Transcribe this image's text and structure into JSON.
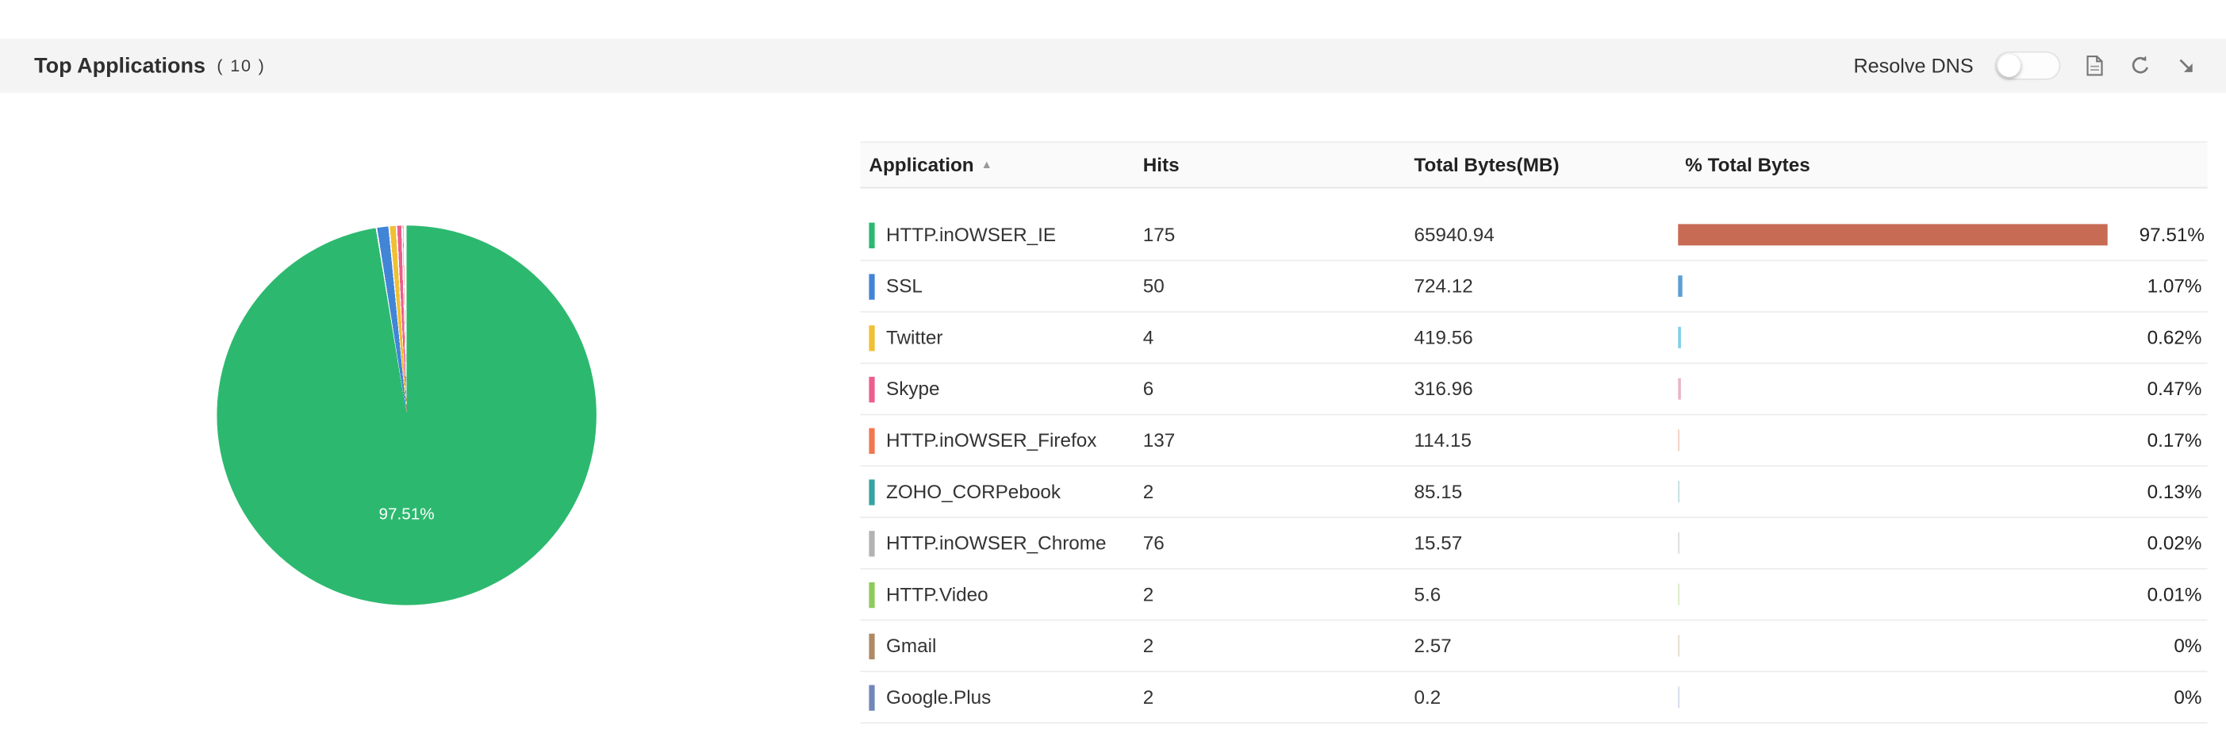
{
  "header": {
    "title": "Top Applications",
    "count": "( 10 )",
    "resolve_dns_label": "Resolve DNS",
    "resolve_dns_state": "off"
  },
  "pie": {
    "center_label": "97.51%"
  },
  "table": {
    "columns": {
      "application": "Application",
      "hits": "Hits",
      "total_bytes": "Total Bytes(MB)",
      "pct": "% Total Bytes"
    },
    "sort": {
      "column": "Application",
      "direction": "asc"
    },
    "rows": [
      {
        "application": "HTTP.inOWSER_IE",
        "hits": "175",
        "total_bytes": "65940.94",
        "pct": "97.51%",
        "pct_value": 97.51,
        "chip_color": "#2cb96f",
        "bar_color": "#c76b54"
      },
      {
        "application": "SSL",
        "hits": "50",
        "total_bytes": "724.12",
        "pct": "1.07%",
        "pct_value": 1.07,
        "chip_color": "#4285d6",
        "bar_color": "#5b9fd4"
      },
      {
        "application": "Twitter",
        "hits": "4",
        "total_bytes": "419.56",
        "pct": "0.62%",
        "pct_value": 0.62,
        "chip_color": "#f0c034",
        "bar_color": "#7fd0ea"
      },
      {
        "application": "Skype",
        "hits": "6",
        "total_bytes": "316.96",
        "pct": "0.47%",
        "pct_value": 0.47,
        "chip_color": "#ea5f8e",
        "bar_color": "#e9b7c9"
      },
      {
        "application": "HTTP.inOWSER_Firefox",
        "hits": "137",
        "total_bytes": "114.15",
        "pct": "0.17%",
        "pct_value": 0.17,
        "chip_color": "#f0774f",
        "bar_color": "#f3cdbf"
      },
      {
        "application": "ZOHO_CORPebook",
        "hits": "2",
        "total_bytes": "85.15",
        "pct": "0.13%",
        "pct_value": 0.13,
        "chip_color": "#35a3a3",
        "bar_color": "#bfdfdf"
      },
      {
        "application": "HTTP.inOWSER_Chrome",
        "hits": "76",
        "total_bytes": "15.57",
        "pct": "0.02%",
        "pct_value": 0.02,
        "chip_color": "#b3b3b3",
        "bar_color": "#dcdcdc"
      },
      {
        "application": "HTTP.Video",
        "hits": "2",
        "total_bytes": "5.6",
        "pct": "0.01%",
        "pct_value": 0.01,
        "chip_color": "#8fca5c",
        "bar_color": "#d6ecc0"
      },
      {
        "application": "Gmail",
        "hits": "2",
        "total_bytes": "2.57",
        "pct": "0%",
        "pct_value": 0,
        "chip_color": "#ad8a66",
        "bar_color": "#e4d8ca"
      },
      {
        "application": "Google.Plus",
        "hits": "2",
        "total_bytes": "0.2",
        "pct": "0%",
        "pct_value": 0,
        "chip_color": "#7286b8",
        "bar_color": "#d3daea"
      }
    ]
  },
  "chart_data": {
    "type": "pie",
    "title": "Top Applications ( 10 )",
    "labels": [
      "HTTP.inOWSER_IE",
      "SSL",
      "Twitter",
      "Skype",
      "HTTP.inOWSER_Firefox",
      "ZOHO_CORPebook",
      "HTTP.inOWSER_Chrome",
      "HTTP.Video",
      "Gmail",
      "Google.Plus"
    ],
    "values": [
      97.51,
      1.07,
      0.62,
      0.47,
      0.17,
      0.13,
      0.02,
      0.01,
      0,
      0
    ],
    "value_unit": "% Total Bytes",
    "colors": [
      "#2cb96f",
      "#4285d6",
      "#f0c034",
      "#ea5f8e",
      "#f0774f",
      "#35a3a3",
      "#b3b3b3",
      "#8fca5c",
      "#ad8a66",
      "#7286b8"
    ],
    "center_label": "97.51%",
    "hits": [
      175,
      50,
      4,
      6,
      137,
      2,
      76,
      2,
      2,
      2
    ],
    "total_bytes_mb": [
      65940.94,
      724.12,
      419.56,
      316.96,
      114.15,
      85.15,
      15.57,
      5.6,
      2.57,
      0.2
    ],
    "legend_position": "none"
  }
}
